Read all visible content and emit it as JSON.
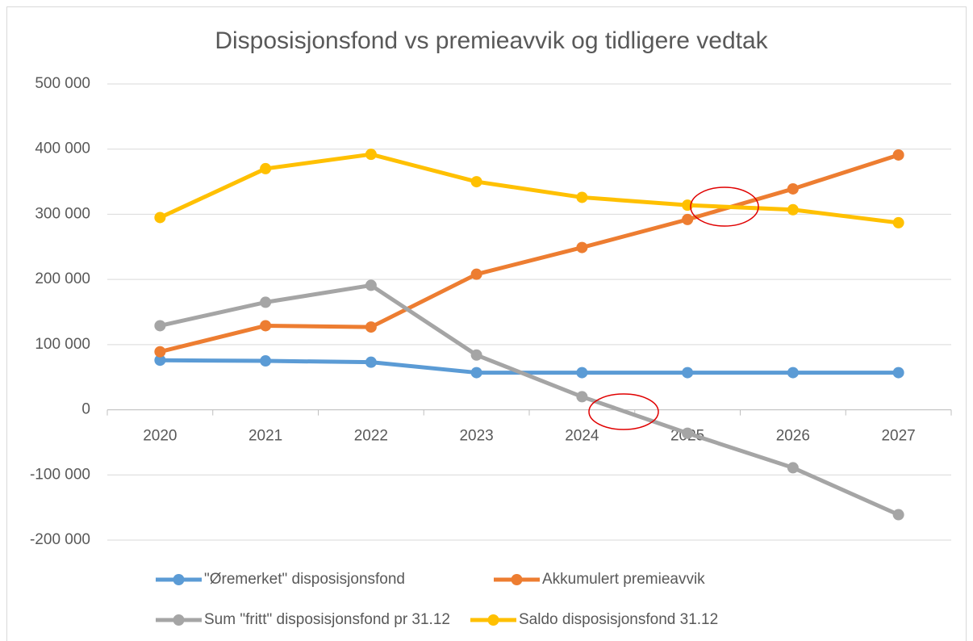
{
  "chart_data": {
    "type": "line",
    "title": "Disposisjonsfond  vs premieavvik og tidligere vedtak",
    "categories": [
      "2020",
      "2021",
      "2022",
      "2023",
      "2024",
      "2025",
      "2026",
      "2027"
    ],
    "series": [
      {
        "name": "\"Øremerket\" disposisjonsfond",
        "color": "#5b9bd5",
        "values": [
          76000,
          75000,
          73000,
          57000,
          57000,
          57000,
          57000,
          57000
        ]
      },
      {
        "name": "Akkumulert premieavvik",
        "color": "#ed7d31",
        "values": [
          89000,
          129000,
          127000,
          208000,
          249000,
          292000,
          339000,
          391000
        ]
      },
      {
        "name": "Sum \"fritt\" disposisjonsfond pr 31.12",
        "color": "#a5a5a5",
        "values": [
          129000,
          165000,
          191000,
          84000,
          20000,
          -36000,
          -89000,
          -161000
        ]
      },
      {
        "name": "Saldo disposisjonsfond 31.12",
        "color": "#ffc000",
        "values": [
          295000,
          370000,
          392000,
          350000,
          326000,
          314000,
          307000,
          287000
        ]
      }
    ],
    "ylim": [
      -200000,
      500000
    ],
    "yticks": [
      {
        "value": -200000,
        "label": "-200 000"
      },
      {
        "value": -100000,
        "label": "-100 000"
      },
      0,
      {
        "value": 100000,
        "label": "100 000"
      },
      {
        "value": 200000,
        "label": "200 000"
      },
      {
        "value": 300000,
        "label": "300 000"
      },
      {
        "value": 400000,
        "label": "400 000"
      },
      {
        "value": 500000,
        "label": "500 000"
      }
    ],
    "grid": true
  }
}
